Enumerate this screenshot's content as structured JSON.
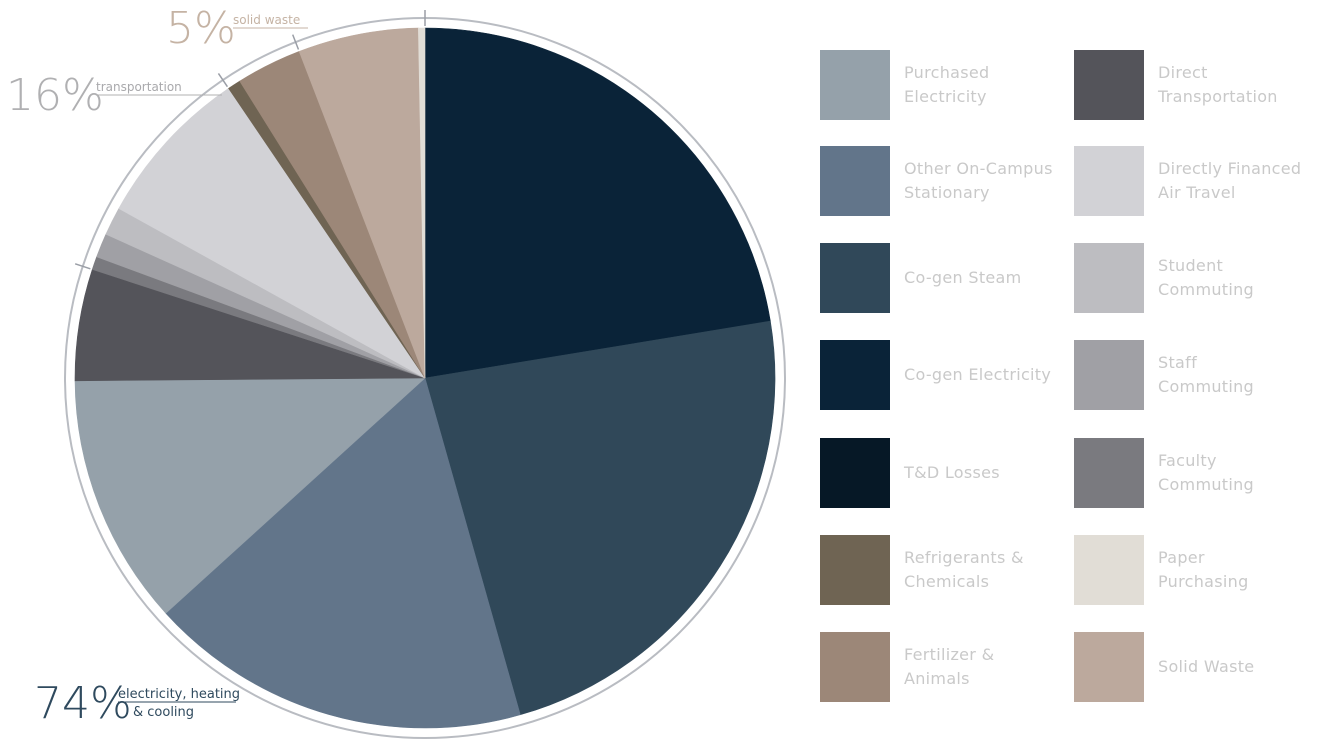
{
  "chart_data": {
    "type": "pie",
    "title": "",
    "start_angle_deg": -90,
    "direction": "clockwise",
    "slices": [
      {
        "name": "Co-gen Electricity",
        "value": 22.2,
        "color": "#0a2338"
      },
      {
        "name": "Co-gen Steam",
        "value": 23.0,
        "color": "#304859"
      },
      {
        "name": "Other On-Campus Stationary",
        "value": 17.5,
        "color": "#62758a"
      },
      {
        "name": "Purchased Electricity",
        "value": 11.5,
        "color": "#95a1aa"
      },
      {
        "name": "Direct Transportation",
        "value": 5.1,
        "color": "#54545a"
      },
      {
        "name": "Faculty Commuting",
        "value": 0.6,
        "color": "#7a7a7f"
      },
      {
        "name": "Staff Commuting",
        "value": 1.1,
        "color": "#a0a0a5"
      },
      {
        "name": "Student Commuting",
        "value": 1.3,
        "color": "#bdbdc1"
      },
      {
        "name": "Directly Financed Air Travel",
        "value": 7.4,
        "color": "#d2d2d6"
      },
      {
        "name": "Refrigerants & Chemicals",
        "value": 0.6,
        "color": "#6f6453"
      },
      {
        "name": "Fertilizer & Animals",
        "value": 3.0,
        "color": "#9c8778"
      },
      {
        "name": "Solid Waste",
        "value": 5.5,
        "color": "#bca99d"
      },
      {
        "name": "Paper Purchasing",
        "value": 0.3,
        "color": "#e1ddd6"
      }
    ],
    "groups": [
      {
        "pct": "74%",
        "text_lines": [
          "electricity, heating",
          "& cooling"
        ],
        "color": "#2f4a5e"
      },
      {
        "pct": "16%",
        "text_lines": [
          "transportation"
        ],
        "color": "#b0b0b2"
      },
      {
        "pct": "5%",
        "text_lines": [
          "solid waste"
        ],
        "color": "#c5b3a4"
      }
    ]
  },
  "legend": {
    "items": [
      {
        "lines": [
          "Purchased",
          "Electricity"
        ],
        "color": "#95a1aa"
      },
      {
        "lines": [
          "Other On-Campus",
          "Stationary"
        ],
        "color": "#62758a"
      },
      {
        "lines": [
          "Co-gen Steam"
        ],
        "color": "#304859"
      },
      {
        "lines": [
          "Co-gen Electricity"
        ],
        "color": "#0a2338"
      },
      {
        "lines": [
          "T&D Losses"
        ],
        "color": "#061826"
      },
      {
        "lines": [
          "Refrigerants &",
          "Chemicals"
        ],
        "color": "#6f6453"
      },
      {
        "lines": [
          "Fertilizer &",
          "Animals"
        ],
        "color": "#9c8778"
      },
      {
        "lines": [
          "Direct",
          "Transportation"
        ],
        "color": "#54545a"
      },
      {
        "lines": [
          "Directly Financed",
          "Air Travel"
        ],
        "color": "#d2d2d6"
      },
      {
        "lines": [
          "Student",
          "Commuting"
        ],
        "color": "#bdbdc1"
      },
      {
        "lines": [
          "Staff",
          "Commuting"
        ],
        "color": "#a0a0a5"
      },
      {
        "lines": [
          "Faculty",
          "Commuting"
        ],
        "color": "#7a7a7f"
      },
      {
        "lines": [
          "Paper",
          "Purchasing"
        ],
        "color": "#e1ddd6"
      },
      {
        "lines": [
          "Solid Waste"
        ],
        "color": "#bca99d"
      }
    ]
  }
}
